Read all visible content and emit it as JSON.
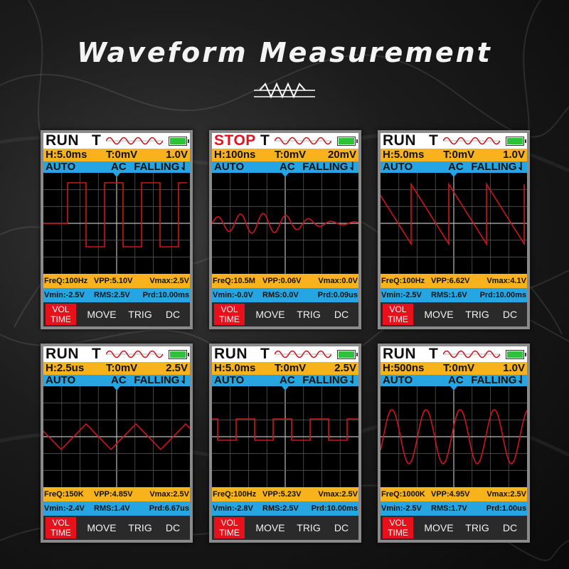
{
  "heading": "Waveform Measurement",
  "colors": {
    "header_orange": "#f8b21c",
    "header_blue": "#25a6e2",
    "trace_red": "#d0141c",
    "stop_red": "#e8101a",
    "battery_green": "#2cc23c"
  },
  "panels": [
    {
      "status": "RUN",
      "trigger_icon": "T",
      "h": "H:5.0ms",
      "t": "T:0mV",
      "volt": "1.0V",
      "auto": "AUTO",
      "coupling": "AC",
      "edge": "FALLING",
      "waveform": "square",
      "freq": "FreQ:100Hz",
      "vpp": "VPP:5.10V",
      "vmax": "Vmax:2.5V",
      "vmin": "Vmin:-2.5V",
      "rms": "RMS:2.5V",
      "prd": "Prd:10.00ms",
      "menu": {
        "vol": "VOL",
        "time": "TIME",
        "move": "MOVE",
        "trig": "TRIG",
        "dc": "DC"
      }
    },
    {
      "status": "STOP",
      "trigger_icon": "T",
      "h": "H:100ns",
      "t": "T:0mV",
      "volt": "20mV",
      "auto": "AUTO",
      "coupling": "AC",
      "edge": "FALLING",
      "waveform": "noisy-sine",
      "freq": "FreQ:10.5M",
      "vpp": "VPP:0.06V",
      "vmax": "Vmax:0.0V",
      "vmin": "Vmin:-0.0V",
      "rms": "RMS:0.0V",
      "prd": "Prd:0.09us",
      "menu": {
        "vol": "VOL",
        "time": "TIME",
        "move": "MOVE",
        "trig": "TRIG",
        "dc": "DC"
      }
    },
    {
      "status": "RUN",
      "trigger_icon": "T",
      "h": "H:5.0ms",
      "t": "T:0mV",
      "volt": "1.0V",
      "auto": "AUTO",
      "coupling": "AC",
      "edge": "FALLING",
      "waveform": "sawtooth",
      "freq": "FreQ:100Hz",
      "vpp": "VPP:6.62V",
      "vmax": "Vmax:4.1V",
      "vmin": "Vmin:-2.5V",
      "rms": "RMS:1.6V",
      "prd": "Prd:10.00ms",
      "menu": {
        "vol": "VOL",
        "time": "TIME",
        "move": "MOVE",
        "trig": "TRIG",
        "dc": "DC"
      }
    },
    {
      "status": "RUN",
      "trigger_icon": "T",
      "h": "H:2.5us",
      "t": "T:0mV",
      "volt": "2.5V",
      "auto": "AUTO",
      "coupling": "AC",
      "edge": "FALLING",
      "waveform": "triangle",
      "freq": "FreQ:150K",
      "vpp": "VPP:4.85V",
      "vmax": "Vmax:2.5V",
      "vmin": "Vmin:-2.4V",
      "rms": "RMS:1.4V",
      "prd": "Prd:6.67us",
      "menu": {
        "vol": "VOL",
        "time": "TIME",
        "move": "MOVE",
        "trig": "TRIG",
        "dc": "DC"
      }
    },
    {
      "status": "RUN",
      "trigger_icon": "T",
      "h": "H:5.0ms",
      "t": "T:0mV",
      "volt": "2.5V",
      "auto": "AUTO",
      "coupling": "AC",
      "edge": "FALLING",
      "waveform": "square-small",
      "freq": "FreQ:100Hz",
      "vpp": "VPP:5.23V",
      "vmax": "Vmax:2.5V",
      "vmin": "Vmin:-2.8V",
      "rms": "RMS:2.5V",
      "prd": "Prd:10.00ms",
      "menu": {
        "vol": "VOL",
        "time": "TIME",
        "move": "MOVE",
        "trig": "TRIG",
        "dc": "DC"
      }
    },
    {
      "status": "RUN",
      "trigger_icon": "T",
      "h": "H:500ns",
      "t": "T:0mV",
      "volt": "1.0V",
      "auto": "AUTO",
      "coupling": "AC",
      "edge": "FALLING",
      "waveform": "sine",
      "freq": "FreQ:1000K",
      "vpp": "VPP:4.95V",
      "vmax": "Vmax:2.5V",
      "vmin": "Vmin:-2.5V",
      "rms": "RMS:1.7V",
      "prd": "Prd:1.00us",
      "menu": {
        "vol": "VOL",
        "time": "TIME",
        "move": "MOVE",
        "trig": "TRIG",
        "dc": "DC"
      }
    }
  ]
}
